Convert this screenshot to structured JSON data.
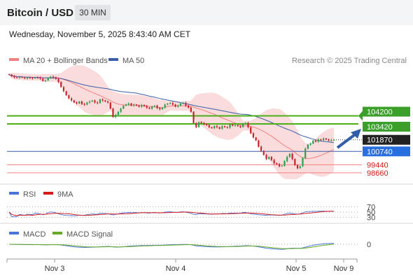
{
  "header": {
    "title": "Bitcoin / USD",
    "interval": "30 MIN"
  },
  "datetime": "Wednesday, November 5, 2025 8:43:40 AM CET",
  "legend": {
    "ma20": "MA 20 + Bollinger Bands",
    "ma50": "MA 50",
    "copyright": "Research © 2025 Trading Central"
  },
  "colors": {
    "ma20": "#f08080",
    "ma50": "#3a5fa8",
    "bands": "#f9c9c9",
    "bull": "#2e9e4f",
    "bear": "#c8232c",
    "resistance": "#4caf1a",
    "support": "#f08080",
    "pivot": "#3a5fa8",
    "rsi": "#4a74d9",
    "rsi_ma": "#d41c1c",
    "macd": "#4a74d9",
    "macd_signal": "#66aa22",
    "arrow": "#2f5fa8"
  },
  "chart_data": [
    {
      "type": "candlestick",
      "x_ticks": [
        "Nov 3",
        "Nov 4",
        "Nov 5",
        "Nov 9"
      ],
      "grid": false,
      "levels": [
        {
          "label": "104200",
          "value": 104200,
          "kind": "resistance",
          "chip": "#3aa02a"
        },
        {
          "label": "103420",
          "value": 103420,
          "kind": "resistance",
          "chip": "#3aa02a"
        },
        {
          "label": "101870",
          "value": 101870,
          "kind": "last-price",
          "chip": "#222222"
        },
        {
          "label": "100740",
          "value": 100740,
          "kind": "pivot",
          "chip": "#2a6fe0"
        },
        {
          "label": "99440",
          "value": 99440,
          "kind": "support"
        },
        {
          "label": "98660",
          "value": 98660,
          "kind": "support"
        }
      ],
      "ylim": [
        97900,
        108800
      ],
      "series": [
        {
          "name": "MA 20 + Bollinger Bands"
        },
        {
          "name": "MA 50"
        }
      ],
      "close": [
        108200,
        108050,
        107950,
        107900,
        107980,
        107920,
        107850,
        107900,
        107880,
        107850,
        107950,
        107900,
        107820,
        107600,
        107650,
        107900,
        108000,
        107950,
        107800,
        107500,
        107000,
        106600,
        106200,
        105900,
        105700,
        105500,
        105400,
        105600,
        105350,
        105300,
        105500,
        105600,
        105700,
        105500,
        105450,
        105800,
        105700,
        105600,
        105500,
        104900,
        104100,
        104300,
        104600,
        104900,
        105200,
        105300,
        105400,
        105200,
        105300,
        105200,
        105100,
        105250,
        105150,
        105000,
        104900,
        105100,
        105200,
        104950,
        104850,
        105000,
        105300,
        105400,
        105450,
        105300,
        105100,
        105200,
        105400,
        105450,
        105200,
        105000,
        104600,
        103500,
        103100,
        103600,
        103500,
        103400,
        103300,
        103100,
        103000,
        103200,
        103100,
        102950,
        103200,
        103100,
        103050,
        103350,
        103250,
        103300,
        103200,
        103100,
        103450,
        103500,
        103100,
        102500,
        102100,
        101800,
        101200,
        100800,
        100400,
        100000,
        100200,
        99900,
        99600,
        99500,
        99300,
        99350,
        99800,
        100200,
        100500,
        100000,
        99400,
        99100,
        99300,
        100100,
        101000,
        101400,
        101500,
        101800,
        101700,
        101900,
        101850,
        102000,
        101900,
        101800,
        101850,
        101870
      ],
      "indicators": [
        {
          "name": "RSI",
          "signal_name": "9MA",
          "levels": [
            70,
            50,
            30
          ]
        },
        {
          "name": "MACD",
          "signal_name": "MACD Signal",
          "levels": [
            0
          ]
        }
      ]
    }
  ]
}
